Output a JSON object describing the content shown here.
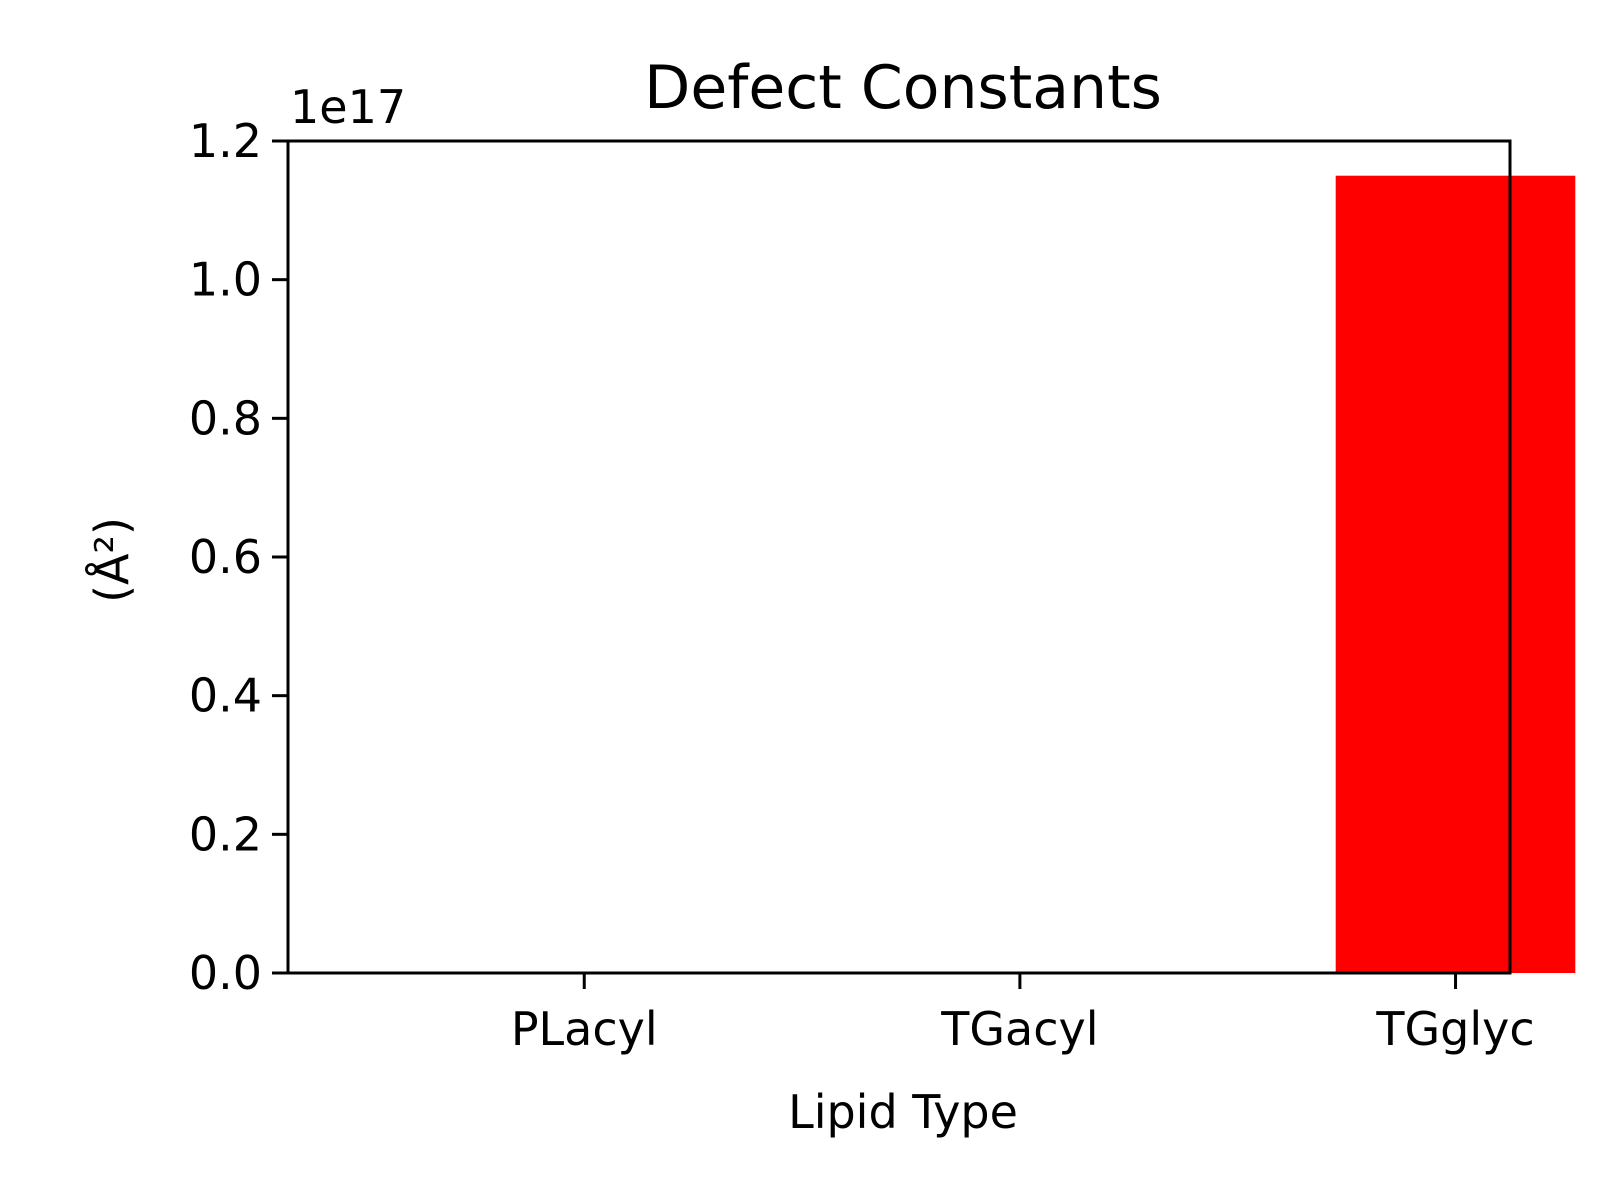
{
  "chart_data": {
    "type": "bar",
    "title": "Defect Constants",
    "xlabel": "Lipid Type",
    "ylabel": "(Å²)",
    "y_offset_label": "1e17",
    "y_scale_factor": 1e+17,
    "categories": [
      "PLacyl",
      "TGacyl",
      "TGglyc"
    ],
    "values": [
      0,
      0,
      1.15e+17
    ],
    "ylim": [
      0,
      1.2e+17
    ],
    "yticks": [
      0,
      2e+16,
      4e+16,
      6e+16,
      8e+16,
      1e+17,
      1.2e+17
    ],
    "ytick_labels": [
      "0.0",
      "0.2",
      "0.4",
      "0.6",
      "0.8",
      "1.0",
      "1.2"
    ],
    "bar_color": "#ff0000",
    "grid": false,
    "legend": "none"
  }
}
